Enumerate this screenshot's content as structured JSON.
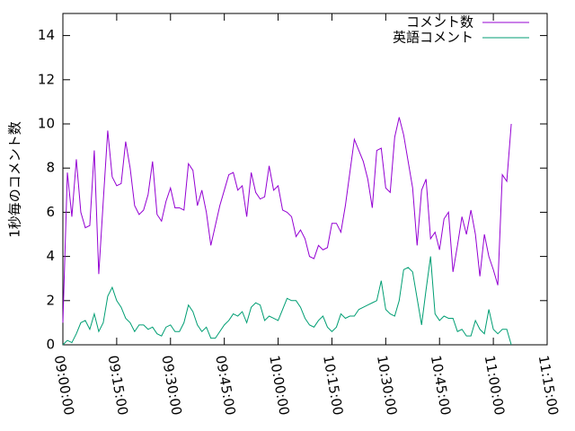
{
  "chart_data": {
    "type": "line",
    "ylabel": "1秒毎のコメント数",
    "x": [
      "09:00:00",
      "09:01:15",
      "09:02:30",
      "09:03:45",
      "09:05:00",
      "09:06:15",
      "09:07:30",
      "09:08:45",
      "09:10:00",
      "09:11:15",
      "09:12:30",
      "09:13:45",
      "09:15:00",
      "09:16:15",
      "09:17:30",
      "09:18:45",
      "09:20:00",
      "09:21:15",
      "09:22:30",
      "09:23:45",
      "09:25:00",
      "09:26:15",
      "09:27:30",
      "09:28:45",
      "09:30:00",
      "09:31:15",
      "09:32:30",
      "09:33:45",
      "09:35:00",
      "09:36:15",
      "09:37:30",
      "09:38:45",
      "09:40:00",
      "09:41:15",
      "09:42:30",
      "09:43:45",
      "09:45:00",
      "09:46:15",
      "09:47:30",
      "09:48:45",
      "09:50:00",
      "09:51:15",
      "09:52:30",
      "09:53:45",
      "09:55:00",
      "09:56:15",
      "09:57:30",
      "09:58:45",
      "10:00:00",
      "10:01:15",
      "10:02:30",
      "10:03:45",
      "10:05:00",
      "10:06:15",
      "10:07:30",
      "10:08:45",
      "10:10:00",
      "10:11:15",
      "10:12:30",
      "10:13:45",
      "10:15:00",
      "10:16:15",
      "10:17:30",
      "10:18:45",
      "10:20:00",
      "10:21:15",
      "10:22:30",
      "10:23:45",
      "10:25:00",
      "10:26:15",
      "10:27:30",
      "10:28:45",
      "10:30:00",
      "10:31:15",
      "10:32:30",
      "10:33:45",
      "10:35:00",
      "10:36:15",
      "10:37:30",
      "10:38:45",
      "10:40:00",
      "10:41:15",
      "10:42:30",
      "10:43:45",
      "10:45:00",
      "10:46:15",
      "10:47:30",
      "10:48:45",
      "10:50:00",
      "10:51:15",
      "10:52:30",
      "10:53:45",
      "10:55:00",
      "10:56:15",
      "10:57:30",
      "10:58:45",
      "11:00:00",
      "11:01:15",
      "11:02:30",
      "11:03:45",
      "11:05:00"
    ],
    "series": [
      {
        "name": "コメント数",
        "color": "#9400d3",
        "values": [
          1,
          7.8,
          5.8,
          8.4,
          6.0,
          5.3,
          5.4,
          8.8,
          3.2,
          6.5,
          9.7,
          7.6,
          7.2,
          7.3,
          9.2,
          8.0,
          6.3,
          5.9,
          6.1,
          6.8,
          8.3,
          5.9,
          5.6,
          6.5,
          7.1,
          6.2,
          6.2,
          6.1,
          8.2,
          7.9,
          6.3,
          7.0,
          6.0,
          4.5,
          5.4,
          6.3,
          7.0,
          7.7,
          7.8,
          7.0,
          7.2,
          5.8,
          7.8,
          6.9,
          6.6,
          6.7,
          8.1,
          7.0,
          7.2,
          6.1,
          6.0,
          5.8,
          4.9,
          5.2,
          4.8,
          4.0,
          3.9,
          4.5,
          4.3,
          4.4,
          5.5,
          5.5,
          5.1,
          6.3,
          7.8,
          9.3,
          8.8,
          8.3,
          7.5,
          6.2,
          8.8,
          8.9,
          7.1,
          6.9,
          9.4,
          10.3,
          9.5,
          8.3,
          7.1,
          4.5,
          7.0,
          7.5,
          4.8,
          5.1,
          4.3,
          5.7,
          6.0,
          3.3,
          4.5,
          5.8,
          5.0,
          6.1,
          5.0,
          3.1,
          5.0,
          4.0,
          3.4,
          2.7,
          7.7,
          7.4,
          10.0
        ]
      },
      {
        "name": "英語コメント",
        "color": "#009e73",
        "values": [
          0,
          0.2,
          0.1,
          0.5,
          1.0,
          1.1,
          0.7,
          1.4,
          0.6,
          1.0,
          2.2,
          2.6,
          2.0,
          1.7,
          1.2,
          1.0,
          0.6,
          0.9,
          0.9,
          0.7,
          0.8,
          0.5,
          0.4,
          0.8,
          0.9,
          0.6,
          0.6,
          1.0,
          1.8,
          1.5,
          0.9,
          0.6,
          0.8,
          0.3,
          0.3,
          0.6,
          0.9,
          1.1,
          1.4,
          1.3,
          1.5,
          1.0,
          1.7,
          1.9,
          1.8,
          1.1,
          1.3,
          1.2,
          1.1,
          1.6,
          2.1,
          2.0,
          2.0,
          1.7,
          1.2,
          0.9,
          0.8,
          1.1,
          1.3,
          0.8,
          0.6,
          0.8,
          1.4,
          1.2,
          1.3,
          1.3,
          1.6,
          1.7,
          1.8,
          1.9,
          2.0,
          2.9,
          1.6,
          1.4,
          1.3,
          2.0,
          3.4,
          3.5,
          3.3,
          2.1,
          0.9,
          2.5,
          4.0,
          1.4,
          1.1,
          1.3,
          1.2,
          1.2,
          0.6,
          0.7,
          0.4,
          0.4,
          1.1,
          0.7,
          0.5,
          1.6,
          0.7,
          0.5,
          0.7,
          0.7,
          0.0
        ]
      }
    ],
    "xlim": [
      "09:00:00",
      "11:15:00"
    ],
    "xticks": [
      "09:00:00",
      "09:15:00",
      "09:30:00",
      "09:45:00",
      "10:00:00",
      "10:15:00",
      "10:30:00",
      "10:45:00",
      "11:00:00",
      "11:15:00"
    ],
    "ylim": [
      0,
      15
    ],
    "yticks": [
      0,
      2,
      4,
      6,
      8,
      10,
      12,
      14
    ],
    "legend": "top-right"
  }
}
